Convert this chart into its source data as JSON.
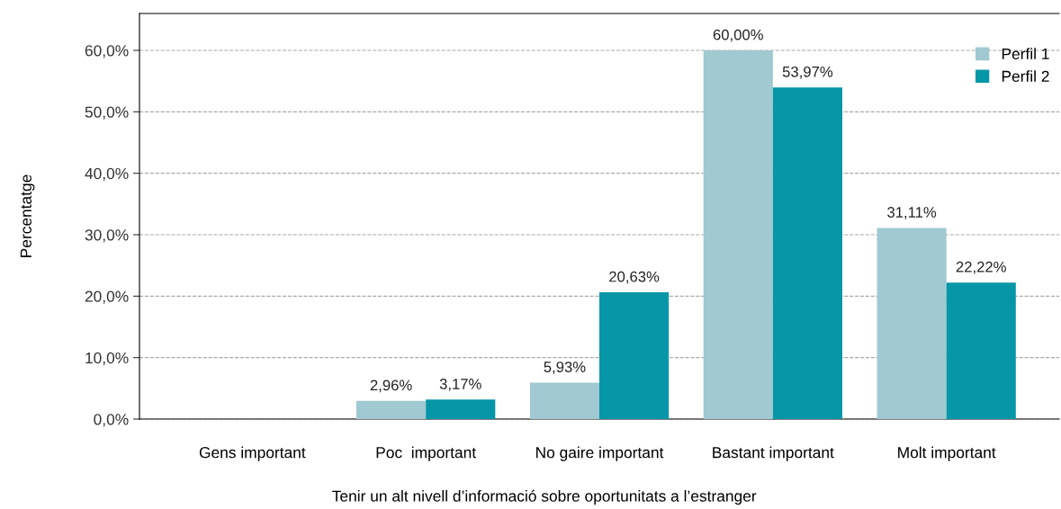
{
  "chart_data": {
    "type": "bar",
    "xlabel": "Tenir un alt nivell d’informació sobre oportunitats a l’estranger",
    "ylabel": "Percentatge",
    "categories": [
      "Gens important",
      "Poc  important",
      "No gaire important",
      "Bastant important",
      "Molt important"
    ],
    "series": [
      {
        "name": "Perfil 1",
        "color": "#a0c9d1",
        "values": [
          null,
          2.96,
          5.93,
          60.0,
          31.11
        ],
        "value_labels": [
          null,
          "2,96%",
          "5,93%",
          "60,00%",
          "31,11%"
        ]
      },
      {
        "name": "Perfil 2",
        "color": "#0596a8",
        "values": [
          null,
          3.17,
          20.63,
          53.97,
          22.22
        ],
        "value_labels": [
          null,
          "3,17%",
          "20,63%",
          "53,97%",
          "22,22%"
        ]
      }
    ],
    "ylim": [
      0,
      66
    ],
    "yticks": [
      {
        "value": 0,
        "label": "0,0%"
      },
      {
        "value": 10,
        "label": "10,0%"
      },
      {
        "value": 20,
        "label": "20,0%"
      },
      {
        "value": 30,
        "label": "30,0%"
      },
      {
        "value": 40,
        "label": "40,0%"
      },
      {
        "value": 50,
        "label": "50,0%"
      },
      {
        "value": 60,
        "label": "60,0%"
      }
    ],
    "grid": "y",
    "legend": "top right"
  }
}
